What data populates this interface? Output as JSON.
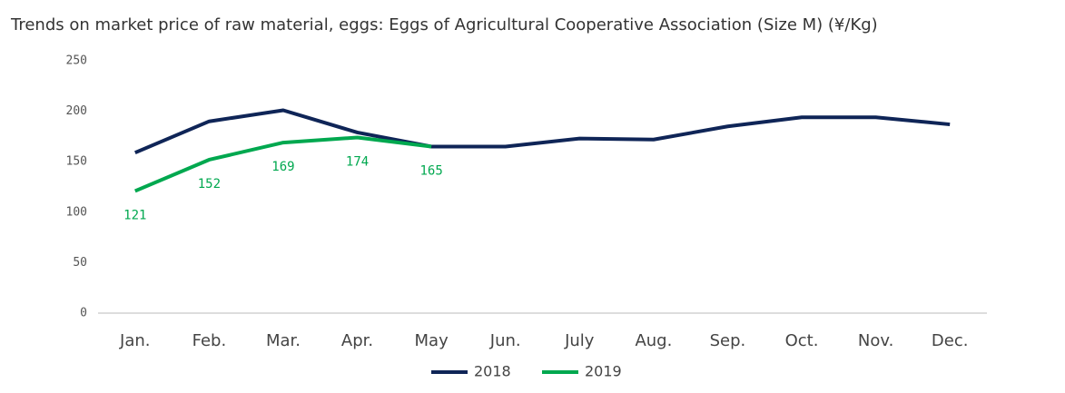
{
  "chart_data": {
    "type": "line",
    "title": "Trends on market price of raw material, eggs: Eggs of Agricultural Cooperative Association (Size M) (¥/Kg)",
    "categories": [
      "Jan.",
      "Feb.",
      "Mar.",
      "Apr.",
      "May",
      "Jun.",
      "July",
      "Aug.",
      "Sep.",
      "Oct.",
      "Nov.",
      "Dec."
    ],
    "series": [
      {
        "name": "2018",
        "color": "#0f2557",
        "values": [
          159,
          190,
          201,
          179,
          165,
          165,
          173,
          172,
          185,
          194,
          194,
          187
        ]
      },
      {
        "name": "2019",
        "color": "#00a84f",
        "values": [
          121,
          152,
          169,
          174,
          165,
          null,
          null,
          null,
          null,
          null,
          null,
          null
        ],
        "data_labels": true
      }
    ],
    "ylim": [
      0,
      250
    ],
    "yticks": [
      0,
      50,
      100,
      150,
      200,
      250
    ],
    "grid": false,
    "legend": "bottom"
  }
}
